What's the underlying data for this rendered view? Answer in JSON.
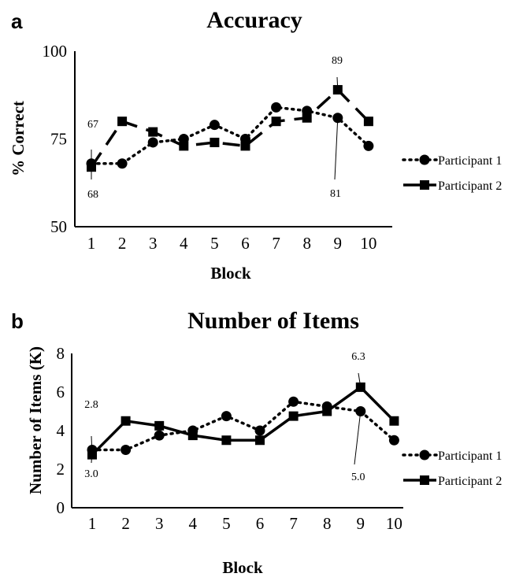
{
  "chart_data": [
    {
      "type": "line",
      "panel": "a",
      "title": "Accuracy",
      "xlabel": "Block",
      "ylabel": "% Correct",
      "ylim": [
        50,
        100
      ],
      "yticks": [
        50,
        75,
        100
      ],
      "x": [
        1,
        2,
        3,
        4,
        5,
        6,
        7,
        8,
        9,
        10
      ],
      "series": [
        {
          "name": "Participant 1",
          "line_style": "dotted",
          "marker": "circle",
          "values": [
            68,
            68,
            74,
            75,
            79,
            75,
            84,
            83,
            81,
            73
          ]
        },
        {
          "name": "Participant 2",
          "line_style": "dashed",
          "marker": "square",
          "values": [
            67,
            80,
            77,
            73,
            74,
            73,
            80,
            81,
            89,
            80
          ]
        }
      ],
      "annotations": [
        {
          "text": "67",
          "x": 1,
          "series": "Participant 2"
        },
        {
          "text": "68",
          "x": 1,
          "series": "Participant 1"
        },
        {
          "text": "89",
          "x": 9,
          "series": "Participant 2"
        },
        {
          "text": "81",
          "x": 9,
          "series": "Participant 1"
        }
      ],
      "grid": false,
      "legend_position": "right"
    },
    {
      "type": "line",
      "panel": "b",
      "title": "Number of Items",
      "xlabel": "Block",
      "ylabel": "Number of Items (K)",
      "ylim": [
        0,
        8
      ],
      "yticks": [
        0,
        2,
        4,
        6,
        8
      ],
      "x": [
        1,
        2,
        3,
        4,
        5,
        6,
        7,
        8,
        9,
        10
      ],
      "series": [
        {
          "name": "Participant 1",
          "line_style": "dotted",
          "marker": "circle",
          "values": [
            3.0,
            3.0,
            3.75,
            4.0,
            4.75,
            4.0,
            5.5,
            5.25,
            5.0,
            3.5
          ]
        },
        {
          "name": "Participant 2",
          "line_style": "solid",
          "marker": "square",
          "values": [
            2.75,
            4.5,
            4.25,
            3.75,
            3.5,
            3.5,
            4.75,
            5.0,
            6.25,
            4.5
          ]
        }
      ],
      "annotations": [
        {
          "text": "2.8",
          "x": 1,
          "series": "Participant 2"
        },
        {
          "text": "3.0",
          "x": 1,
          "series": "Participant 1"
        },
        {
          "text": "6.3",
          "x": 9,
          "series": "Participant 2"
        },
        {
          "text": "5.0",
          "x": 9,
          "series": "Participant 1"
        }
      ],
      "grid": false,
      "legend_position": "right"
    }
  ]
}
